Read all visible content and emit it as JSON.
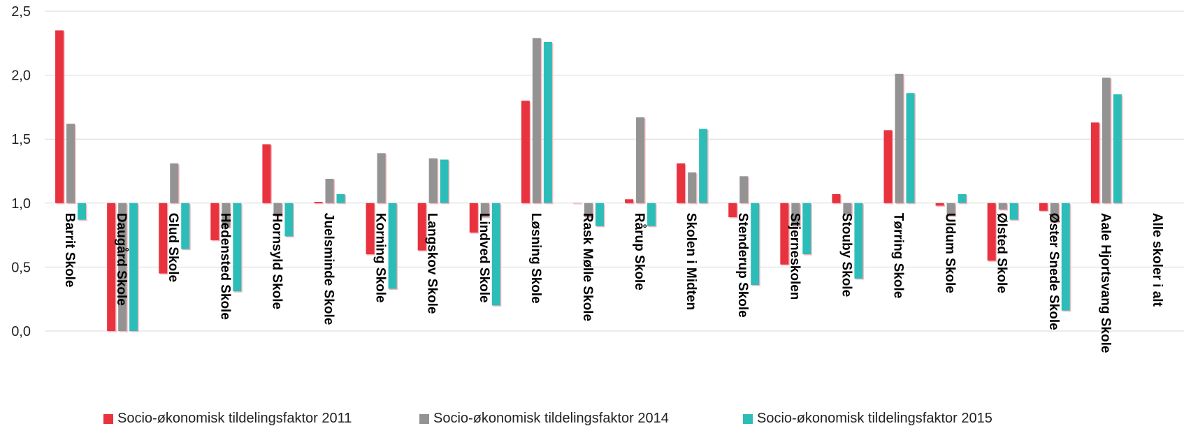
{
  "chart_data": {
    "type": "bar",
    "title": "",
    "xlabel": "",
    "ylabel": "",
    "ylim": [
      0,
      2.5
    ],
    "baseline": 1.0,
    "yticks": [
      "0,0",
      "0,5",
      "1,0",
      "1,5",
      "2,0",
      "2,5"
    ],
    "grid": true,
    "legend_position": "bottom",
    "categories": [
      "Barrit Skole",
      "Daugård Skole",
      "Glud Skole",
      "Hedensted Skole",
      "Hornsyld Skole",
      "Juelsminde Skole",
      "Korning Skole",
      "Langskov Skole",
      "Lindved Skole",
      "Løsning Skole",
      "Rask Mølle Skole",
      "Rårup Skole",
      "Skolen i Midten",
      "Stenderup Skole",
      "Stjerneskolen",
      "Stouby Skole",
      "Tørring Skole",
      "Uldum Skole",
      "Ølsted Skole",
      "Øster Snede Skole",
      "Aale Hjortsvang Skole",
      "Alle skoler i alt"
    ],
    "series": [
      {
        "name": "Socio-økonomisk tildelingsfaktor 2011",
        "color": "#e8333f",
        "values": [
          2.35,
          0.0,
          0.45,
          0.71,
          1.46,
          1.01,
          0.6,
          0.63,
          0.77,
          1.8,
          1.0,
          1.03,
          1.31,
          0.89,
          0.52,
          1.07,
          1.57,
          0.98,
          0.55,
          0.94,
          1.63,
          null
        ]
      },
      {
        "name": "Socio-økonomisk tildelingsfaktor 2014",
        "color": "#939393",
        "values": [
          1.62,
          0.0,
          1.31,
          0.81,
          0.9,
          1.19,
          1.39,
          1.35,
          0.89,
          2.29,
          0.89,
          1.67,
          1.24,
          1.21,
          0.82,
          0.91,
          2.01,
          0.9,
          0.95,
          0.85,
          1.98,
          null
        ]
      },
      {
        "name": "Socio-økonomisk tildelingsfaktor 2015",
        "color": "#2dbdb9",
        "values": [
          0.87,
          0.0,
          0.64,
          0.31,
          0.74,
          1.07,
          0.33,
          1.34,
          0.2,
          2.26,
          0.82,
          0.82,
          1.58,
          0.36,
          0.6,
          0.41,
          1.86,
          1.07,
          0.87,
          0.16,
          1.85,
          null
        ]
      }
    ]
  }
}
